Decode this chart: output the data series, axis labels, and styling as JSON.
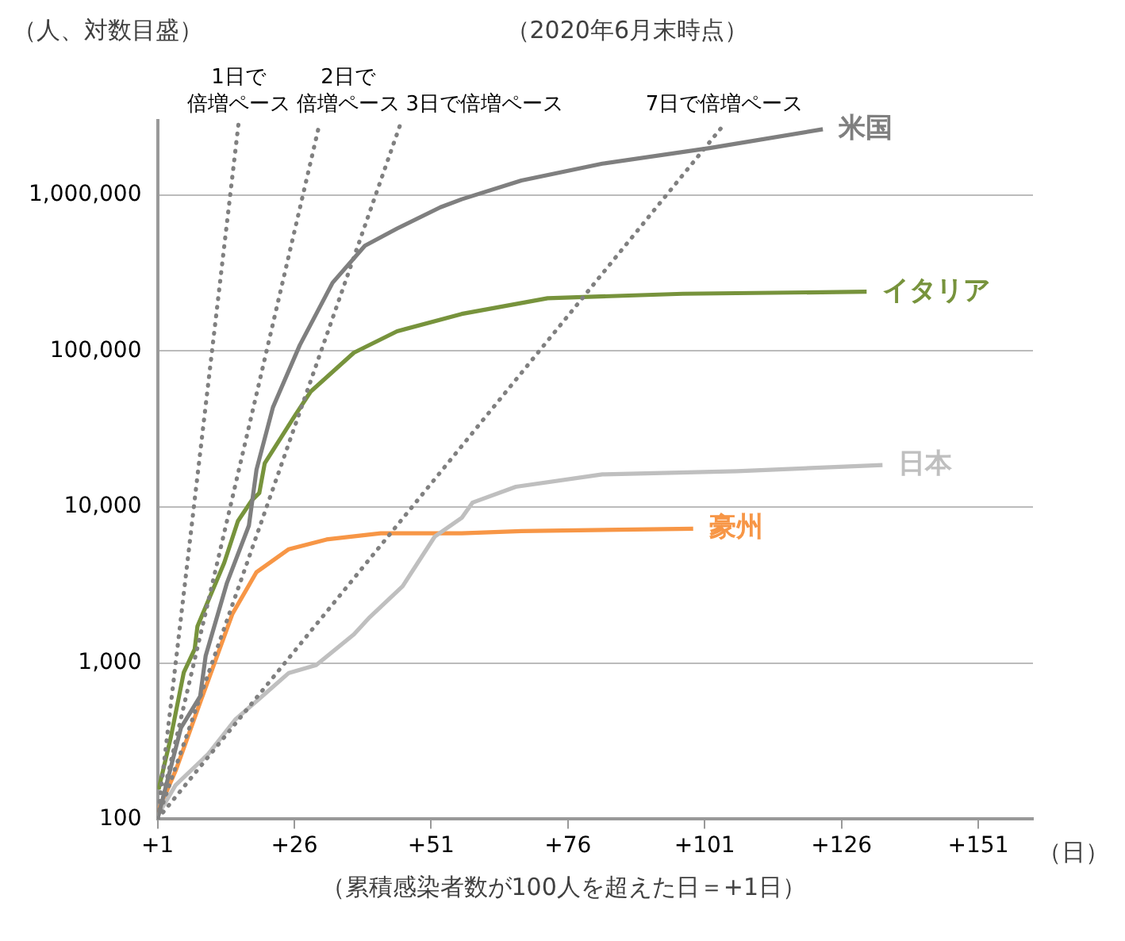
{
  "chart_data": {
    "type": "line",
    "title": "（人、対数目盛）",
    "subtitle": "（2020年6月末時点）",
    "xlabel": "（累積感染者数が100人を超えた日＝+1日）",
    "annotations": [
      "（日）"
    ],
    "log": "y",
    "grid": "y",
    "legend": false,
    "marker": "none",
    "xlim": [
      1,
      161
    ],
    "xticks": [
      {
        "value": 1,
        "label": "+1"
      },
      {
        "value": 26,
        "label": "+26"
      },
      {
        "value": 51,
        "label": "+51"
      },
      {
        "value": 76,
        "label": "+76"
      },
      {
        "value": 101,
        "label": "+101"
      },
      {
        "value": 126,
        "label": "+126"
      },
      {
        "value": 151,
        "label": "+151"
      }
    ],
    "ylim": [
      100,
      3000000
    ],
    "yticks": [
      {
        "value": 100,
        "label": "100"
      },
      {
        "value": 1000,
        "label": "1,000"
      },
      {
        "value": 10000,
        "label": "10,000"
      },
      {
        "value": 100000,
        "label": "100,000"
      },
      {
        "value": 1000000,
        "label": "1,000,000"
      }
    ],
    "series": [
      {
        "name": "1日で倍増ペース",
        "color": "#808080",
        "line_style": "dotted",
        "x": [
          1,
          15.8
        ],
        "values": [
          100,
          2850000
        ]
      },
      {
        "name": "2日で倍増ペース",
        "color": "#808080",
        "line_style": "dotted",
        "x": [
          1,
          30.6
        ],
        "values": [
          100,
          2850000
        ]
      },
      {
        "name": "3日で倍増ペース",
        "color": "#808080",
        "line_style": "dotted",
        "x": [
          1,
          45.4
        ],
        "values": [
          100,
          2850000
        ]
      },
      {
        "name": "7日で倍増ペース",
        "color": "#808080",
        "line_style": "dotted",
        "x": [
          1,
          104.6
        ],
        "values": [
          100,
          2850000
        ]
      },
      {
        "name": "米国",
        "color": "#7f7f7f",
        "line_style": "solid",
        "x": [
          1,
          5.3,
          8.8,
          9.8,
          13.7,
          17.7,
          19.1,
          22.1,
          27,
          33,
          38.9,
          44.8,
          52.7,
          56.6,
          67.5,
          82.3,
          101.9,
          122.6
        ],
        "values": [
          100,
          386,
          612,
          1110,
          3270,
          7600,
          17400,
          43600,
          109000,
          274000,
          473000,
          610000,
          835000,
          940000,
          1240000,
          1590000,
          2000000,
          2640000
        ]
      },
      {
        "name": "イタリア",
        "color": "#77933c",
        "line_style": "solid",
        "x": [
          1.2,
          3.4,
          5.8,
          7.8,
          8.3,
          13.2,
          15.7,
          18.2,
          19.6,
          20.6,
          26,
          29,
          36.9,
          44.8,
          56.6,
          72.3,
          97,
          130.6
        ],
        "values": [
          155,
          330,
          870,
          1230,
          1720,
          4400,
          8140,
          11000,
          12300,
          19100,
          38000,
          55000,
          97600,
          134000,
          173000,
          218000,
          233000,
          240000
        ]
      },
      {
        "name": "日本",
        "color": "#bfbfbf",
        "line_style": "solid",
        "x": [
          1,
          4.3,
          10.3,
          15.2,
          20.1,
          25,
          30,
          36.9,
          39.8,
          45.8,
          51.7,
          56.6,
          58.6,
          66.5,
          82.3,
          106.9,
          133.5
        ],
        "values": [
          105,
          165,
          262,
          434,
          612,
          865,
          970,
          1530,
          1970,
          3110,
          6490,
          8530,
          10700,
          13500,
          16200,
          17000,
          18600
        ]
      },
      {
        "name": "豪州",
        "color": "#f79646",
        "line_style": "solid",
        "x": [
          1,
          4.4,
          8.8,
          14.7,
          19.1,
          25,
          31.9,
          41.8,
          56.6,
          67.5,
          98.9
        ],
        "values": [
          110,
          208,
          560,
          2070,
          3830,
          5370,
          6200,
          6800,
          6800,
          7010,
          7270
        ]
      }
    ]
  }
}
